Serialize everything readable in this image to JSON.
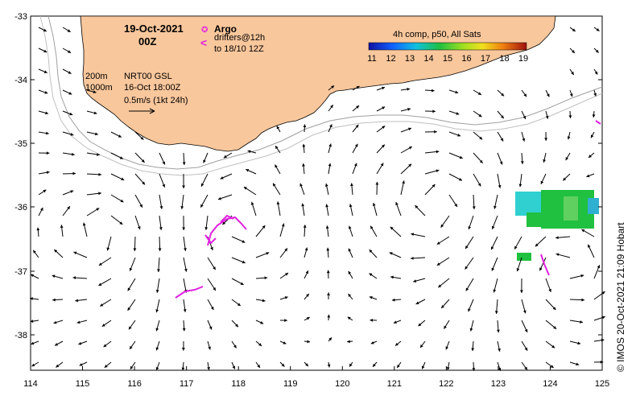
{
  "map": {
    "title_date": "19-Oct-2021",
    "title_time": "00Z",
    "argo_label": "Argo",
    "argo_symbol": "✪",
    "drifter_symbol": "<",
    "drifters_line1": "drifters@12h",
    "drifters_line2": "to 18/10 12Z",
    "depth_200": "200m",
    "depth_1000": "1000m",
    "product": "NRT00 GSL",
    "product_time": "16-Oct 18:00Z",
    "scale_label": "0.5m/s (1kt 24h)",
    "colorbar_title": "4h comp, p50, All Sats",
    "colorbar_ticks": [
      "11",
      "12",
      "13",
      "14",
      "15",
      "16",
      "17",
      "18",
      "19"
    ],
    "credit": "© IMOS 20-Oct-2021 21:09 Hobart"
  },
  "axes": {
    "x_ticks": [
      "114",
      "115",
      "116",
      "117",
      "118",
      "119",
      "120",
      "121",
      "122",
      "123",
      "124",
      "125"
    ],
    "y_ticks": [
      "-33",
      "-34",
      "-35",
      "-36",
      "-37",
      "-38"
    ],
    "lon_range": [
      114,
      125
    ],
    "lat_range": [
      -38.5,
      -33
    ]
  },
  "colors": {
    "land": "#f9c79c",
    "drifter": "#e020e0",
    "sst_cyan": "#30d0d0",
    "sst_green": "#20c040",
    "isobath": "#a0a0a0"
  }
}
